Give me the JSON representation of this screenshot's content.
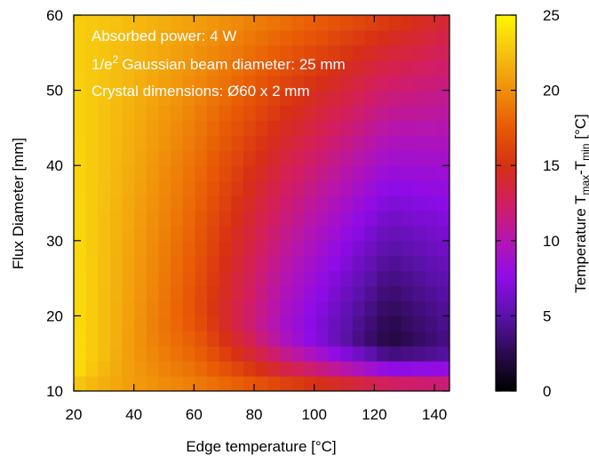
{
  "chart_data": {
    "type": "heatmap",
    "title": "",
    "xlabel": "Edge temperature [°C]",
    "ylabel": "Flux Diameter [mm]",
    "xlim": [
      20,
      145
    ],
    "ylim": [
      10,
      60
    ],
    "xticks": [
      20,
      40,
      60,
      80,
      100,
      120,
      140
    ],
    "yticks": [
      10,
      20,
      30,
      40,
      50,
      60
    ],
    "grid": false,
    "x_cells": 31,
    "y_cells": 25,
    "annotations": [
      "Absorbed power: 4 W",
      "Gaussian beam diameter: 25 mm",
      "Crystal dimensions: Ø60 x 2 mm"
    ],
    "colorbar": {
      "label": "Temperature T",
      "label_sub1": "max",
      "label_sep": "-T",
      "label_sub2": "min",
      "label_unit": " [°C]",
      "range": [
        0,
        25
      ],
      "ticks": [
        0,
        5,
        10,
        15,
        20,
        25
      ],
      "colormap": [
        "#000000",
        "#2b0a4f",
        "#5a12a8",
        "#8e0ce8",
        "#b515b0",
        "#d21e60",
        "#d63014",
        "#e85a05",
        "#f08e0a",
        "#f6c210",
        "#fff700"
      ]
    },
    "model": {
      "description_values": "temperature difference surface (°C)",
      "valley_points": [
        {
          "x": 20,
          "y": 13,
          "value_min": 24
        },
        {
          "x": 60,
          "y": 21,
          "value_min": 17
        },
        {
          "x": 90,
          "y": 18,
          "value_min": 9
        },
        {
          "x": 125,
          "y": 16.5,
          "value_min": 2
        },
        {
          "x": 145,
          "y": 16,
          "value_min": 4
        }
      ],
      "top_left_value": 23,
      "top_right_value": 14
    }
  }
}
